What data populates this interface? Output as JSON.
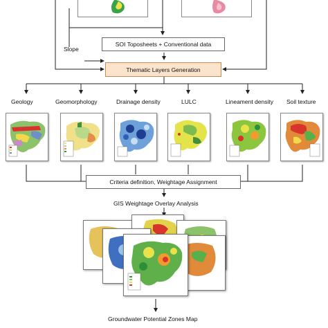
{
  "top": {
    "slope_label": "Slope",
    "soi_label": "SOI Toposheets + Conventional data"
  },
  "thematic": {
    "label": "Thematic Layers Generation"
  },
  "layers": [
    {
      "label": "Geology"
    },
    {
      "label": "Geomorphology"
    },
    {
      "label": "Drainage density"
    },
    {
      "label": "LULC"
    },
    {
      "label": "Lineament density"
    },
    {
      "label": "Soil texture"
    }
  ],
  "criteria": {
    "label": "Criteria definition, Weightage Assignment"
  },
  "gis": {
    "label": "GIS Weightage Overlay Analysis"
  },
  "output": {
    "label": "Groundwater Potential Zones Map"
  },
  "colors": {
    "box_border": "#666666",
    "thematic_fill": "#fbe3cc",
    "thematic_border": "#c48a55",
    "arrow": "#222222"
  }
}
